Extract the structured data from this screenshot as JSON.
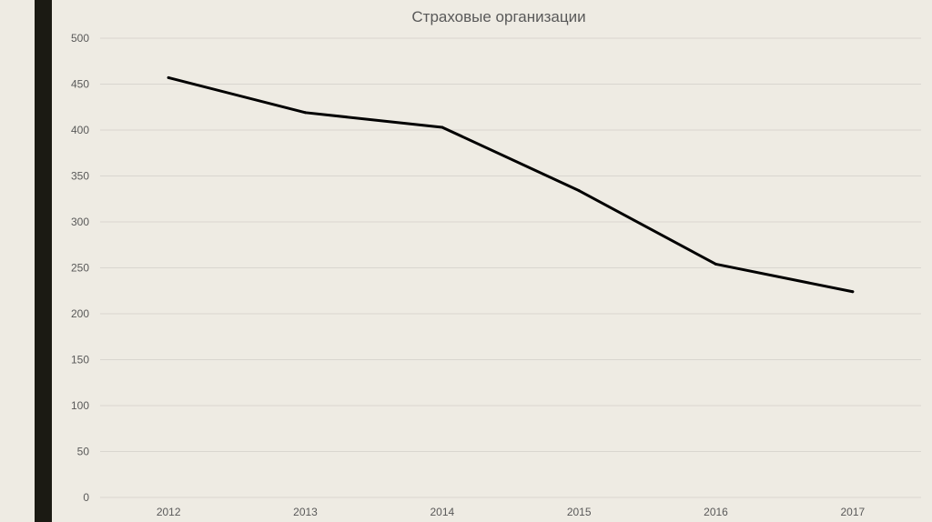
{
  "chart_data": {
    "type": "line",
    "title": "Страховые организации",
    "xlabel": "",
    "ylabel": "",
    "categories": [
      "2012",
      "2013",
      "2014",
      "2015",
      "2016",
      "2017"
    ],
    "series": [
      {
        "values": [
          457,
          419,
          403,
          334,
          254,
          224
        ],
        "color": "#000000"
      }
    ],
    "ylim": [
      0,
      500
    ],
    "yticks": [
      0,
      50,
      100,
      150,
      200,
      250,
      300,
      350,
      400,
      450,
      500
    ],
    "grid": true,
    "legend": "none"
  },
  "colors": {
    "background": "#eeebe3",
    "side_bar": "#1b1a13",
    "line": "#000000"
  }
}
